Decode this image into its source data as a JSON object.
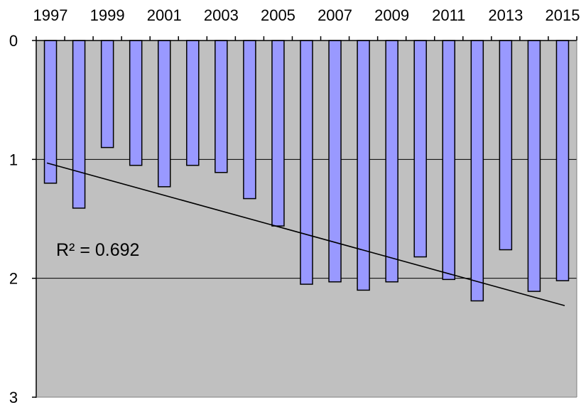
{
  "chart_data": {
    "type": "bar",
    "orientation": "vertical",
    "x_axis_position": "top",
    "y_axis_reversed": true,
    "categories": [
      "1997",
      "1998",
      "1999",
      "2000",
      "2001",
      "2002",
      "2003",
      "2004",
      "2005",
      "2006",
      "2007",
      "2008",
      "2009",
      "2010",
      "2011",
      "2012",
      "2013",
      "2014",
      "2015"
    ],
    "x_tick_labels": [
      "1997",
      "1999",
      "2001",
      "2003",
      "2005",
      "2007",
      "2009",
      "2011",
      "2013",
      "2015"
    ],
    "values": [
      1.2,
      1.41,
      0.9,
      1.05,
      1.23,
      1.05,
      1.11,
      1.33,
      1.56,
      2.05,
      2.03,
      2.1,
      2.03,
      1.82,
      2.01,
      2.19,
      1.76,
      2.11,
      2.02
    ],
    "ylim": [
      0,
      3
    ],
    "y_ticks": [
      0,
      1,
      2,
      3
    ],
    "y_tick_labels": [
      "0",
      "1",
      "2",
      "3"
    ],
    "grid": true,
    "trendline": {
      "type": "linear",
      "start": {
        "x": "1997",
        "y": 1.03
      },
      "end": {
        "x": "2015",
        "y": 2.23
      }
    },
    "annotation": "R² = 0.692",
    "colors": {
      "bar_fill": "#9999ff",
      "bar_stroke": "#000000",
      "plot_background": "#c0c0c0",
      "gridline": "#000000",
      "trendline": "#000000"
    }
  }
}
